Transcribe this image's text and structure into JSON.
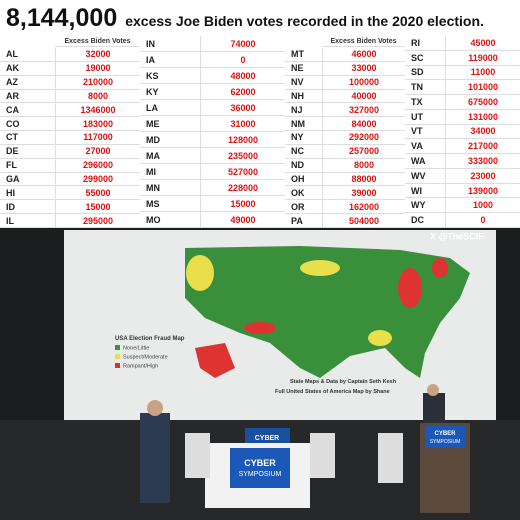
{
  "header": {
    "number": "8,144,000",
    "text": "excess Joe Biden votes recorded in the 2020 election."
  },
  "table": {
    "groups": [
      {
        "header": "Excess Biden Votes",
        "rows": [
          [
            "AL",
            32000
          ],
          [
            "AK",
            19000
          ],
          [
            "AZ",
            210000
          ],
          [
            "AR",
            8000
          ],
          [
            "CA",
            1346000
          ],
          [
            "CO",
            183000
          ],
          [
            "CT",
            117000
          ],
          [
            "DE",
            27000
          ],
          [
            "FL",
            296000
          ],
          [
            "GA",
            299000
          ],
          [
            "HI",
            55000
          ],
          [
            "ID",
            15000
          ],
          [
            "IL",
            295000
          ]
        ]
      },
      {
        "rows": [
          [
            "IN",
            74000
          ],
          [
            "IA",
            0
          ],
          [
            "KS",
            48000
          ],
          [
            "KY",
            62000
          ],
          [
            "LA",
            36000
          ],
          [
            "ME",
            31000
          ],
          [
            "MD",
            128000
          ],
          [
            "MA",
            235000
          ],
          [
            "MI",
            527000
          ],
          [
            "MN",
            228000
          ],
          [
            "MS",
            15000
          ],
          [
            "MO",
            49000
          ]
        ]
      },
      {
        "header": "Excess Biden Votes",
        "rows": [
          [
            "MT",
            46000
          ],
          [
            "NE",
            33000
          ],
          [
            "NV",
            100000
          ],
          [
            "NH",
            40000
          ],
          [
            "NJ",
            327000
          ],
          [
            "NM",
            84000
          ],
          [
            "NY",
            292000
          ],
          [
            "NC",
            257000
          ],
          [
            "ND",
            8000
          ],
          [
            "OH",
            88000
          ],
          [
            "OK",
            39000
          ],
          [
            "OR",
            162000
          ],
          [
            "PA",
            504000
          ]
        ]
      },
      {
        "rows": [
          [
            "RI",
            45000
          ],
          [
            "SC",
            119000
          ],
          [
            "SD",
            11000
          ],
          [
            "TN",
            101000
          ],
          [
            "TX",
            675000
          ],
          [
            "UT",
            131000
          ],
          [
            "VT",
            34000
          ],
          [
            "VA",
            217000
          ],
          [
            "WA",
            333000
          ],
          [
            "WV",
            23000
          ],
          [
            "WI",
            139000
          ],
          [
            "WY",
            1000
          ],
          [
            "DC",
            0
          ]
        ]
      }
    ]
  },
  "photo": {
    "watermark": "X @TheSCIF",
    "map_legend": {
      "title": "USA Election Fraud Map",
      "items": [
        "None/Little",
        "Suspect/Moderate",
        "Rampant/High"
      ]
    },
    "credits": [
      "State Maps & Data by Captain Seth Kesh",
      "Full United States of America Map by Shane"
    ],
    "backdrop_sign": [
      "CYBER",
      "SYMPOSIUM"
    ],
    "podium_sign": [
      "CYBER",
      "SYMPOSIUM"
    ]
  }
}
